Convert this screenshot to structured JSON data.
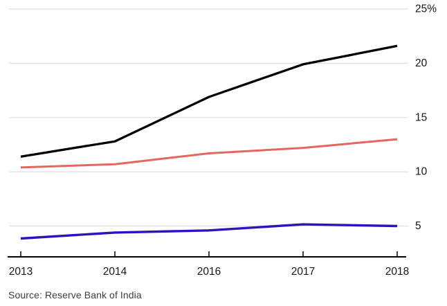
{
  "chart_data": {
    "type": "line",
    "title": "",
    "x_categories": [
      "2013",
      "2014",
      "2016",
      "2017",
      "2018"
    ],
    "series": [
      {
        "name": "black-line",
        "color": "#000000",
        "stroke_width": 3.3,
        "values": [
          11.4,
          12.8,
          16.9,
          19.9,
          21.6
        ]
      },
      {
        "name": "salmon-line",
        "color": "#e5665f",
        "stroke_width": 3.0,
        "values": [
          10.4,
          10.7,
          11.7,
          12.2,
          13.0
        ]
      },
      {
        "name": "blue-line",
        "color": "#2b13c0",
        "stroke_width": 3.4,
        "values": [
          3.85,
          4.4,
          4.6,
          5.15,
          5.0
        ]
      }
    ],
    "y_axis": {
      "side": "right",
      "ticks": [
        25,
        20,
        15,
        10,
        5
      ],
      "tick_labels": [
        "25%",
        "20",
        "15",
        "10",
        "5"
      ],
      "ymin": 2.2,
      "ymax": 25
    },
    "x_axis": {
      "line": true,
      "ticks": true
    },
    "grid": "horizontal",
    "legend": "none"
  },
  "source": {
    "text": "Source: Reserve Bank of India"
  },
  "colors": {
    "background": "#ffffff",
    "grid": "#e0e0e0",
    "axis": "#000000",
    "tick_label": "#161616",
    "source_text": "#3d3d3d"
  }
}
